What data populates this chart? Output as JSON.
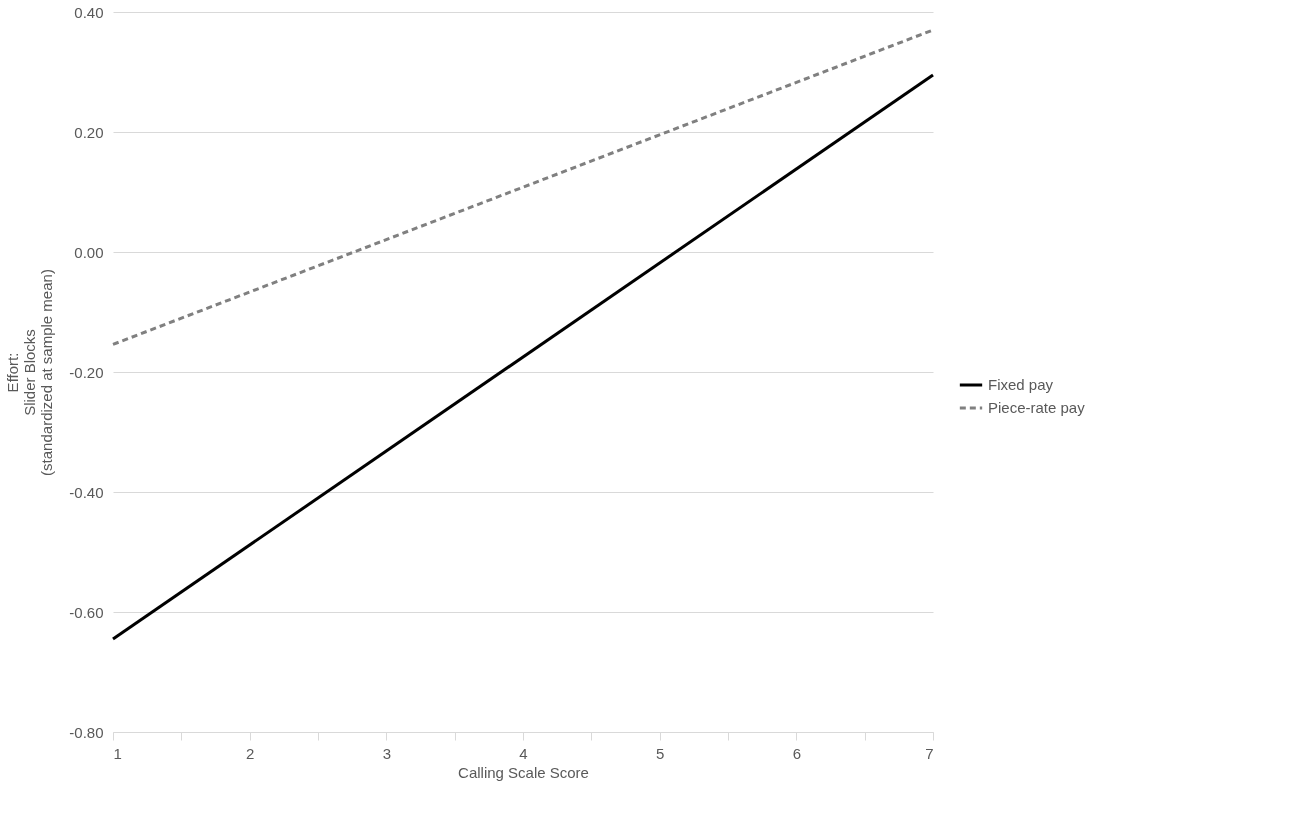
{
  "chart_data": {
    "type": "line",
    "xlabel": "Calling Scale Score",
    "ylabel": "Effort:\nSlider Blocks\n(standardized at sample mean)",
    "x": [
      1,
      7
    ],
    "series": [
      {
        "name": "Fixed pay",
        "color": "#000000",
        "values": [
          -0.645,
          0.295
        ],
        "line_style": "solid"
      },
      {
        "name": "Piece-rate pay",
        "color": "#808080",
        "values": [
          -0.154,
          0.37
        ],
        "line_style": "dashed"
      }
    ],
    "xlim": [
      1,
      7
    ],
    "xticks": [
      1,
      {
        "value": 1.5,
        "label": null
      },
      2,
      {
        "value": 2.5,
        "label": null
      },
      3,
      {
        "value": 3.5,
        "label": null
      },
      4,
      {
        "value": 4.5,
        "label": null
      },
      5,
      {
        "value": 5.5,
        "label": null
      },
      6,
      {
        "value": 6.5,
        "label": null
      },
      7
    ],
    "ylim": [
      -0.8,
      0.4
    ],
    "yticks": [
      {
        "value": -0.8,
        "label": "-0.80"
      },
      {
        "value": -0.6,
        "label": "-0.60"
      },
      {
        "value": -0.4,
        "label": "-0.40"
      },
      {
        "value": -0.2,
        "label": "-0.20"
      },
      {
        "value": 0,
        "label": "0.00"
      },
      {
        "value": 0.2,
        "label": "0.20"
      },
      {
        "value": 0.4,
        "label": "0.40"
      }
    ],
    "grid": "y",
    "legend": "right",
    "marker": "none"
  }
}
